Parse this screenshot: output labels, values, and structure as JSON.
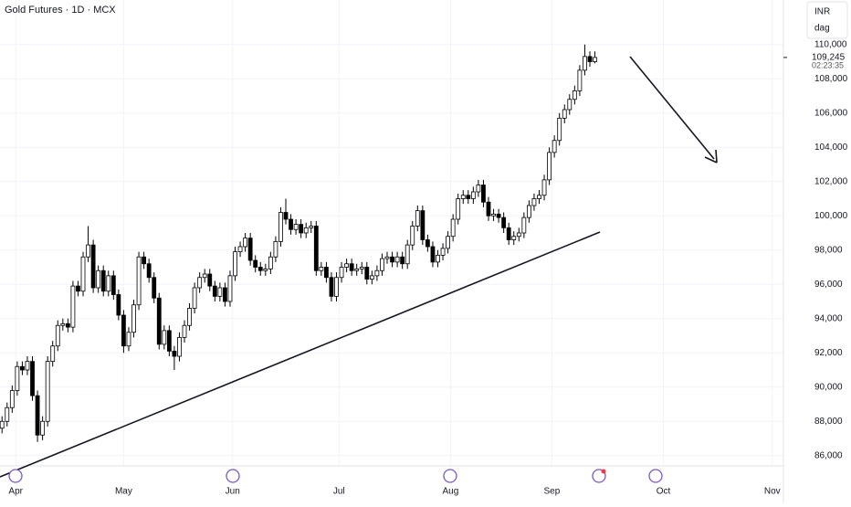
{
  "chart_data": {
    "type": "candlestick",
    "title": "Gold Futures · 1D · MCX",
    "currency": "INR",
    "unit": "dag",
    "last_price": {
      "value": 109245,
      "label": "109,245"
    },
    "countdown": "02:23:35",
    "up_color": "#ffffff",
    "down_color": "#000000",
    "outline_color": "#000000",
    "grid": true,
    "xlim": [
      -0.4,
      154.2
    ],
    "xticks": [
      {
        "value": 2.7,
        "label": "Apr"
      },
      {
        "value": 24,
        "label": "May"
      },
      {
        "value": 45.5,
        "label": "Jun"
      },
      {
        "value": 66.5,
        "label": "Jul"
      },
      {
        "value": 88.5,
        "label": "Aug"
      },
      {
        "value": 108.5,
        "label": "Sep"
      },
      {
        "value": 130.5,
        "label": "Oct"
      },
      {
        "value": 152,
        "label": "Nov"
      }
    ],
    "ylim": [
      85400,
      112600
    ],
    "yticks": [
      {
        "value": 86000,
        "label": "86,000"
      },
      {
        "value": 88000,
        "label": "88,000"
      },
      {
        "value": 90000,
        "label": "90,000"
      },
      {
        "value": 92000,
        "label": "92,000"
      },
      {
        "value": 94000,
        "label": "94,000"
      },
      {
        "value": 96000,
        "label": "96,000"
      },
      {
        "value": 98000,
        "label": "98,000"
      },
      {
        "value": 100000,
        "label": "100,000"
      },
      {
        "value": 102000,
        "label": "102,000"
      },
      {
        "value": 104000,
        "label": "104,000"
      },
      {
        "value": 106000,
        "label": "106,000"
      },
      {
        "value": 108000,
        "label": "108,000"
      },
      {
        "value": 110000,
        "label": "110,000"
      }
    ],
    "open": [
      87600,
      88000,
      88800,
      89800,
      91200,
      91000,
      91500,
      89500,
      87200,
      88000,
      91500,
      92400,
      93600,
      93700,
      93500,
      95900,
      95600,
      97600,
      98300,
      95800,
      96800,
      95600,
      96500,
      95400,
      94200,
      92400,
      93200,
      94800,
      97600,
      97200,
      96400,
      95200,
      92500,
      93300,
      92100,
      91800,
      92900,
      93600,
      94600,
      95800,
      96400,
      96600,
      95900,
      95300,
      95800,
      95000,
      96500,
      97900,
      98200,
      98700,
      97400,
      97000,
      96800,
      96900,
      97600,
      98500,
      100200,
      99800,
      99200,
      99500,
      99000,
      99300,
      99400,
      96800,
      97000,
      96400,
      95300,
      96400,
      97000,
      97200,
      96800,
      96900,
      97000,
      96300,
      96500,
      96800,
      97500,
      97600,
      97300,
      97600,
      97200,
      98300,
      99400,
      100300,
      98600,
      98200,
      97300,
      97700,
      98100,
      98800,
      99800,
      101000,
      101200,
      101000,
      101400,
      101800,
      100800,
      100000,
      100100,
      99900,
      99300,
      98600,
      98800,
      99000,
      99900,
      100600,
      101000,
      101200,
      102100,
      103700,
      104400,
      105700,
      106200,
      106800,
      107300,
      108500,
      109300,
      109000
    ],
    "high": [
      88300,
      89100,
      90100,
      91500,
      91500,
      91800,
      91800,
      89800,
      88300,
      91800,
      92700,
      93900,
      94000,
      94000,
      96200,
      96200,
      97900,
      99400,
      98600,
      97100,
      97100,
      96800,
      96800,
      95700,
      94500,
      93500,
      95100,
      97900,
      97900,
      97500,
      96700,
      95500,
      93600,
      93600,
      92400,
      93200,
      93900,
      94900,
      96100,
      96700,
      96900,
      96900,
      96200,
      96100,
      96100,
      96800,
      98200,
      98500,
      99000,
      99000,
      97700,
      97300,
      97200,
      97900,
      98800,
      100500,
      101000,
      100100,
      99800,
      99800,
      99600,
      99700,
      99700,
      97300,
      97300,
      96700,
      96700,
      97300,
      97500,
      97500,
      97200,
      97300,
      97300,
      96800,
      97100,
      97800,
      97900,
      97900,
      97900,
      97900,
      98600,
      99700,
      100600,
      100600,
      98900,
      98500,
      98000,
      98400,
      99100,
      100100,
      101300,
      101500,
      101500,
      101700,
      102100,
      102100,
      101100,
      100400,
      100400,
      100200,
      99600,
      99100,
      99300,
      100200,
      100900,
      101300,
      101500,
      102400,
      104000,
      104700,
      106000,
      106500,
      107100,
      107600,
      108800,
      110000,
      109600,
      109600
    ],
    "low": [
      87300,
      87700,
      88500,
      89500,
      90700,
      90700,
      89200,
      86800,
      86900,
      87700,
      91200,
      92100,
      93300,
      93200,
      93200,
      95300,
      95300,
      97300,
      95500,
      95500,
      95300,
      95300,
      95100,
      93900,
      92000,
      92100,
      92900,
      94500,
      96900,
      96100,
      94900,
      92200,
      92200,
      91800,
      91000,
      91500,
      92600,
      93300,
      94300,
      95500,
      96100,
      95600,
      95000,
      95000,
      94700,
      94700,
      96200,
      97600,
      97900,
      97100,
      96700,
      96500,
      96500,
      96600,
      97300,
      98200,
      99500,
      98900,
      98900,
      98700,
      98700,
      99000,
      96500,
      96500,
      96100,
      95000,
      95000,
      96100,
      96700,
      96500,
      96500,
      96600,
      96000,
      96000,
      96200,
      96500,
      97200,
      97000,
      97000,
      96900,
      96900,
      98000,
      99100,
      98300,
      97900,
      97000,
      97000,
      97400,
      97800,
      98500,
      99500,
      100700,
      100700,
      100700,
      101100,
      100500,
      99700,
      99700,
      99600,
      99000,
      98300,
      98300,
      98500,
      98700,
      99600,
      100300,
      100700,
      100900,
      101800,
      103400,
      104100,
      105400,
      105900,
      106500,
      107000,
      108200,
      108700,
      108900
    ],
    "close": [
      88000,
      88800,
      89800,
      91200,
      91000,
      91500,
      89500,
      87200,
      88000,
      91500,
      92400,
      93600,
      93700,
      93500,
      95900,
      95600,
      97600,
      98300,
      95800,
      96800,
      95600,
      96500,
      95400,
      94200,
      92400,
      93200,
      94800,
      97600,
      97200,
      96400,
      95200,
      92500,
      93300,
      92100,
      91800,
      92900,
      93600,
      94600,
      95800,
      96400,
      96600,
      95900,
      95300,
      95800,
      95000,
      96500,
      97900,
      98200,
      98700,
      97400,
      97000,
      96800,
      96900,
      97600,
      98500,
      100200,
      99800,
      99200,
      99500,
      99000,
      99300,
      99400,
      96800,
      97000,
      96400,
      95300,
      96400,
      97000,
      97200,
      96800,
      96900,
      97000,
      96300,
      96500,
      96800,
      97500,
      97600,
      97300,
      97600,
      97200,
      98300,
      99400,
      100300,
      98600,
      98200,
      97300,
      97700,
      98100,
      98800,
      99800,
      101000,
      101200,
      101000,
      101400,
      101800,
      100800,
      100000,
      100100,
      99900,
      99300,
      98600,
      98800,
      99000,
      99900,
      100600,
      101000,
      101200,
      102100,
      103700,
      104400,
      105700,
      106200,
      106800,
      107300,
      108500,
      109300,
      109000,
      109245
    ]
  }
}
